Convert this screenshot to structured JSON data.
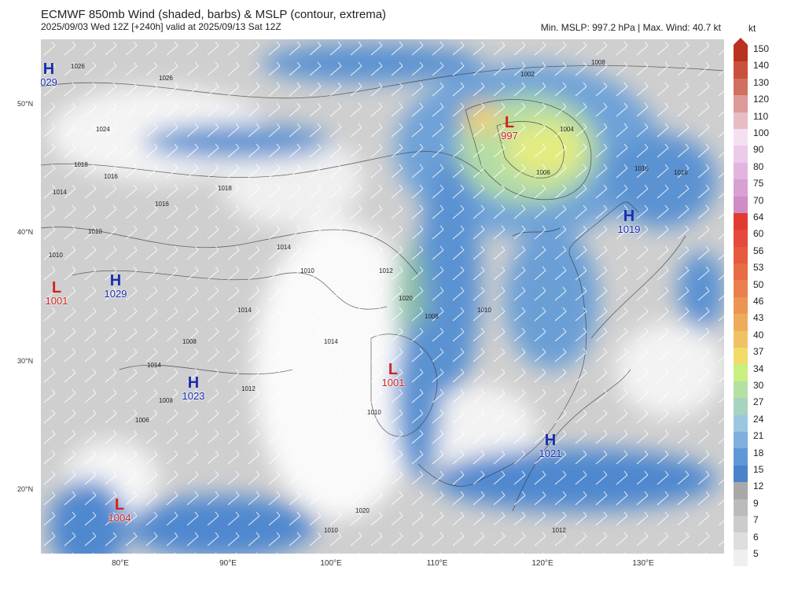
{
  "header": {
    "title": "ECMWF 850mb Wind (shaded, barbs) & MSLP (contour, extrema)",
    "subtitle": "2025/09/03 Wed 12Z [+240h] valid at 2025/09/13 Sat 12Z",
    "stats": "Min. MSLP: 997.2 hPa | Max. Wind: 40.7 kt"
  },
  "colorbar": {
    "unit": "kt",
    "levels": [
      "150",
      "140",
      "130",
      "120",
      "110",
      "100",
      "90",
      "80",
      "75",
      "70",
      "64",
      "60",
      "56",
      "53",
      "50",
      "46",
      "43",
      "40",
      "37",
      "34",
      "30",
      "27",
      "24",
      "21",
      "18",
      "15",
      "12",
      "9",
      "7",
      "6",
      "5"
    ],
    "colors": [
      "#b8321f",
      "#c9503b",
      "#d0705f",
      "#dc9a98",
      "#e8bcc4",
      "#f5e0f2",
      "#eccaea",
      "#e2b5de",
      "#d9a0d2",
      "#cf8cc7",
      "#e23b33",
      "#e54a3a",
      "#e65a3f",
      "#e86c45",
      "#ea804c",
      "#ec9553",
      "#eeab5b",
      "#f0c263",
      "#f0dc66",
      "#c9ef80",
      "#b5e0a3",
      "#a7d3bf",
      "#9bc6df",
      "#7fb0dd",
      "#5f98d6",
      "#4a82cc",
      "#a8a8a8",
      "#bbbbbb",
      "#cccccc",
      "#dedede",
      "#efefef"
    ]
  },
  "axes": {
    "lat_labels": [
      "50°N",
      "40°N",
      "30°N",
      "20°N"
    ],
    "lon_labels": [
      "80°E",
      "90°E",
      "100°E",
      "110°E",
      "120°E",
      "130°E"
    ]
  },
  "extrema": [
    {
      "type": "H",
      "value": "029"
    },
    {
      "type": "L",
      "value": "997"
    },
    {
      "type": "H",
      "value": "1019"
    },
    {
      "type": "L",
      "value": "1001"
    },
    {
      "type": "H",
      "value": "1029"
    },
    {
      "type": "L",
      "value": "1001"
    },
    {
      "type": "H",
      "value": "1023"
    },
    {
      "type": "H",
      "value": "1021"
    },
    {
      "type": "L",
      "value": "1004"
    }
  ],
  "contour_labels": [
    "1026",
    "1026",
    "1024",
    "1018",
    "1016",
    "1014",
    "1010",
    "1018",
    "1016",
    "1014",
    "1010",
    "1002",
    "1008",
    "1004",
    "1006",
    "1016",
    "1016",
    "1014",
    "1012",
    "1010",
    "1008",
    "1020",
    "1014",
    "1008",
    "1012",
    "1006",
    "1014",
    "1008",
    "1010",
    "1010",
    "1020",
    "1010",
    "1012"
  ]
}
